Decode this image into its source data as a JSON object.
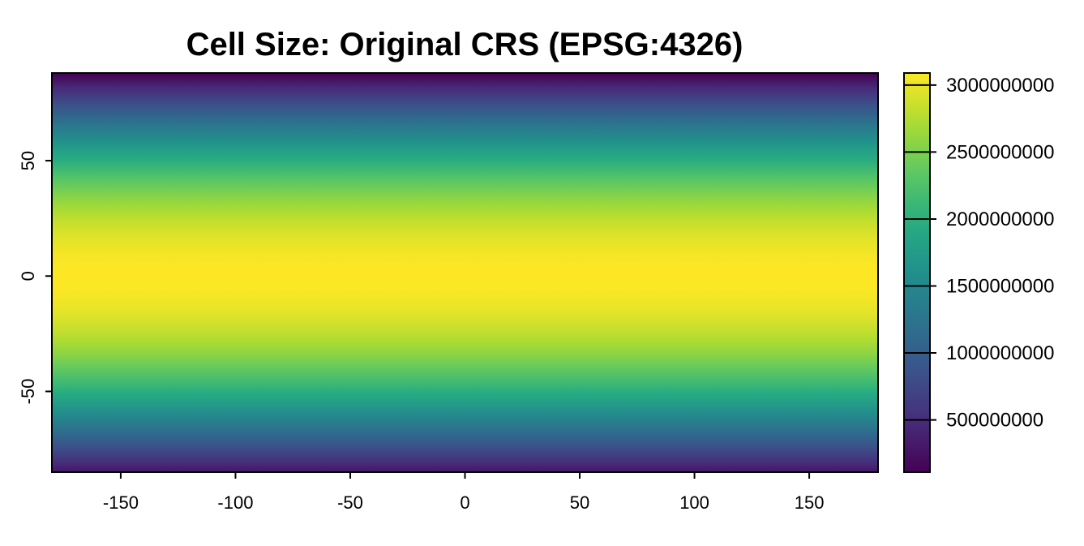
{
  "chart_data": {
    "type": "heatmap",
    "title": "Cell Size: Original CRS (EPSG:4326)",
    "xlabel": "",
    "ylabel": "",
    "xlim": [
      -180,
      180
    ],
    "ylim": [
      -85,
      88
    ],
    "x_ticks": [
      -150,
      -100,
      -50,
      0,
      50,
      100,
      150
    ],
    "x_tick_labels": [
      "-150",
      "-100",
      "-50",
      "0",
      "50",
      "100",
      "150"
    ],
    "y_ticks": [
      -50,
      0,
      50
    ],
    "y_tick_labels": [
      "-50",
      "0",
      "50"
    ],
    "color_scale": {
      "palette": "viridis",
      "colors": [
        "#440154",
        "#472D7B",
        "#3B528B",
        "#2C728E",
        "#21908C",
        "#27AD81",
        "#5DC863",
        "#AADC32",
        "#FDE725"
      ],
      "min": 110000000,
      "max": 3090000000,
      "ticks": [
        500000000,
        1000000000,
        1500000000,
        2000000000,
        2500000000,
        3000000000
      ],
      "tick_labels": [
        "500000000",
        "1000000000",
        "1500000000",
        "2000000000",
        "2500000000",
        "3000000000"
      ]
    },
    "value_model": "max_at_equator_cosine_of_latitude",
    "legend_position": "right",
    "grid": false
  }
}
